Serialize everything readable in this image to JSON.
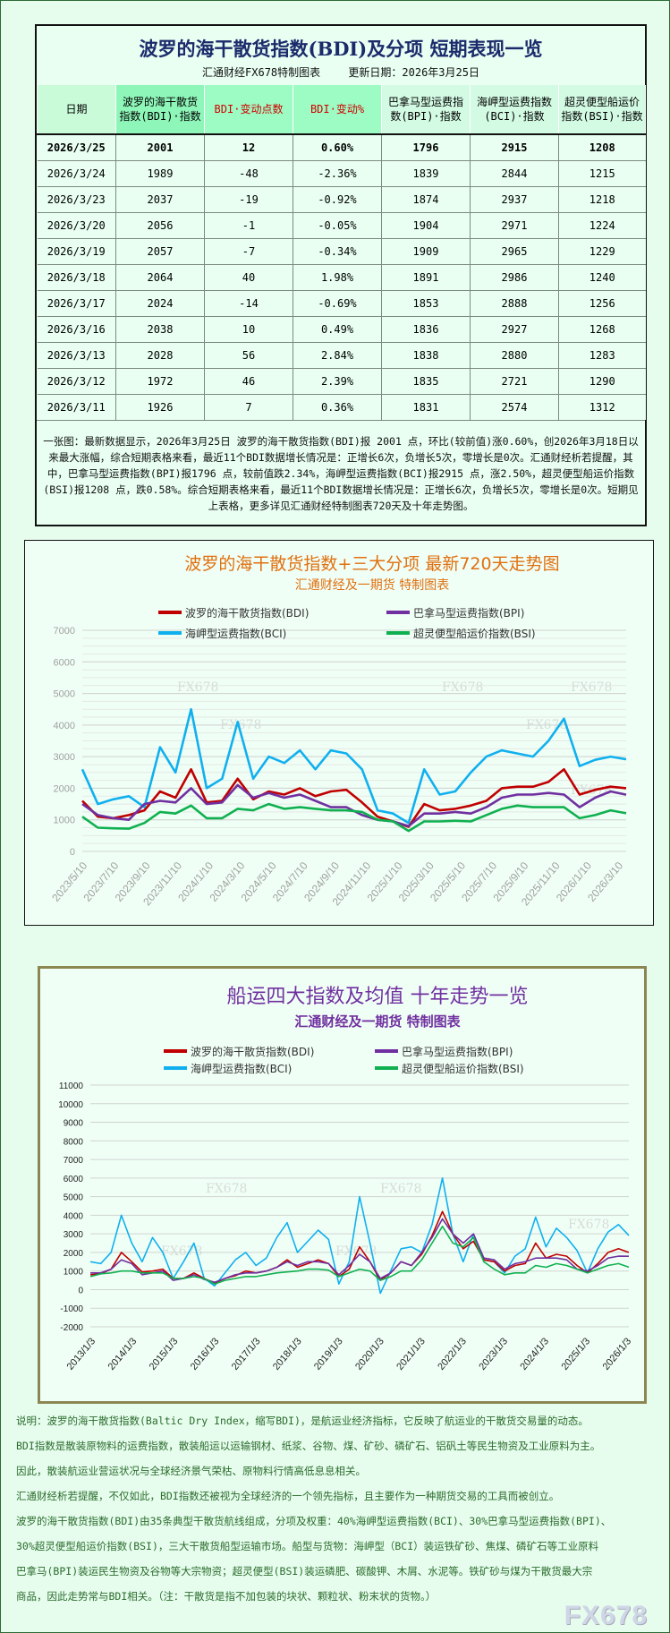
{
  "table": {
    "title": "波罗的海干散货指数(BDI)及分项 短期表现一览",
    "source": "汇通财经FX678特制图表",
    "updated": "更新日期：2026年3月25日",
    "headers": [
      "日期",
      "波罗的海干散货指数(BDI)·指数",
      "BDI·变动点数",
      "BDI·变动%",
      "巴拿马型运费指数(BPI)·指数",
      "海岬型运费指数(BCI)·指数",
      "超灵便型船运价指数(BSI)·指数"
    ],
    "rows": [
      [
        "2026/3/25",
        "2001",
        "12",
        "0.60%",
        "1796",
        "2915",
        "1208"
      ],
      [
        "2026/3/24",
        "1989",
        "-48",
        "-2.36%",
        "1839",
        "2844",
        "1215"
      ],
      [
        "2026/3/23",
        "2037",
        "-19",
        "-0.92%",
        "1874",
        "2937",
        "1218"
      ],
      [
        "2026/3/20",
        "2056",
        "-1",
        "-0.05%",
        "1904",
        "2971",
        "1224"
      ],
      [
        "2026/3/19",
        "2057",
        "-7",
        "-0.34%",
        "1909",
        "2965",
        "1229"
      ],
      [
        "2026/3/18",
        "2064",
        "40",
        "1.98%",
        "1891",
        "2986",
        "1240"
      ],
      [
        "2026/3/17",
        "2024",
        "-14",
        "-0.69%",
        "1853",
        "2888",
        "1256"
      ],
      [
        "2026/3/16",
        "2038",
        "10",
        "0.49%",
        "1836",
        "2927",
        "1268"
      ],
      [
        "2026/3/13",
        "2028",
        "56",
        "2.84%",
        "1838",
        "2880",
        "1283"
      ],
      [
        "2026/3/12",
        "1972",
        "46",
        "2.39%",
        "1835",
        "2721",
        "1290"
      ],
      [
        "2026/3/11",
        "1926",
        "7",
        "0.36%",
        "1831",
        "2574",
        "1312"
      ]
    ],
    "description": "一张图：最新数据显示，2026年3月25日 波罗的海干散货指数(BDI)报 2001 点，环比(较前值)涨0.60%，创2026年3月18日以来最大涨幅，综合短期表格来看，最近11个BDI数据增长情况是：正增长6次，负增长5次，零增长是0次。汇通财经析若提醒，其中，巴拿马型运费指数(BPI)报1796 点，较前值跌2.34%，海岬型运费指数(BCI)报2915 点，涨2.50%，超灵便型船运价指数(BSI)报1208 点，跌0.58%。综合短期表格来看，最近11个BDI数据增长情况是：正增长6次，负增长5次，零增长是0次。短期见上表格，更多详见汇通财经特制图表720天及十年走势图。"
  },
  "colors": {
    "BDI": "#c00000",
    "BPI": "#7030a0",
    "BCI": "#10b0ef",
    "BSI": "#10b050",
    "chart1_title": "#e07010",
    "chart2_title": "#7030a0"
  },
  "watermark": "FX678",
  "chart_data": [
    {
      "type": "line",
      "title": "波罗的海干散货指数+三大分项  最新720天走势图",
      "subtitle": "汇通财经及一期货  特制图表",
      "ylim": [
        0,
        7000
      ],
      "yticks": [
        "0",
        "1000",
        "2000",
        "3000",
        "4000",
        "5000",
        "6000",
        "7000"
      ],
      "xticks": [
        "2023/5/10",
        "2023/7/10",
        "2023/9/10",
        "2023/11/10",
        "2024/1/10",
        "2024/3/10",
        "2024/5/10",
        "2024/7/10",
        "2024/9/10",
        "2024/11/10",
        "2025/1/10",
        "2025/3/10",
        "2025/5/10",
        "2025/7/10",
        "2025/9/10",
        "2025/11/10",
        "2026/1/10",
        "2026/3/10"
      ],
      "grid": true,
      "legend": "top",
      "x": [
        "2023/5",
        "2023/6",
        "2023/7",
        "2023/8",
        "2023/9",
        "2023/10",
        "2023/11",
        "2023/12",
        "2024/1",
        "2024/2",
        "2024/3",
        "2024/4",
        "2024/5",
        "2024/6",
        "2024/7",
        "2024/8",
        "2024/9",
        "2024/10",
        "2024/11",
        "2024/12",
        "2025/1",
        "2025/2",
        "2025/3",
        "2025/4",
        "2025/5",
        "2025/6",
        "2025/7",
        "2025/8",
        "2025/9",
        "2025/10",
        "2025/11",
        "2025/12",
        "2026/1",
        "2026/2",
        "2026/3",
        "2026/3/25"
      ],
      "series": [
        {
          "name": "波罗的海干散货指数(BDI)",
          "key": "BDI",
          "values": [
            1600,
            1100,
            1050,
            1150,
            1300,
            1900,
            1700,
            2600,
            1550,
            1600,
            2300,
            1650,
            1900,
            1800,
            2000,
            1750,
            1900,
            1950,
            1550,
            1100,
            950,
            780,
            1500,
            1300,
            1350,
            1450,
            1600,
            2000,
            2050,
            2050,
            2200,
            2600,
            1800,
            1950,
            2050,
            2001
          ]
        },
        {
          "name": "巴拿马型运费指数(BPI)",
          "key": "BPI",
          "values": [
            1500,
            1150,
            1050,
            1000,
            1500,
            1600,
            1550,
            2000,
            1500,
            1550,
            2100,
            1700,
            1850,
            1700,
            1800,
            1600,
            1400,
            1400,
            1150,
            1000,
            950,
            800,
            1200,
            1200,
            1250,
            1200,
            1400,
            1700,
            1800,
            1800,
            1850,
            1800,
            1400,
            1700,
            1900,
            1796
          ]
        },
        {
          "name": "海岬型运费指数(BCI)",
          "key": "BCI",
          "values": [
            2600,
            1500,
            1650,
            1750,
            1400,
            3300,
            2500,
            4500,
            2000,
            2300,
            4100,
            2300,
            3000,
            2800,
            3200,
            2600,
            3200,
            3100,
            2600,
            1300,
            1200,
            900,
            2600,
            1800,
            1900,
            2500,
            3000,
            3200,
            3100,
            3000,
            3500,
            4200,
            2700,
            2900,
            3000,
            2915
          ]
        },
        {
          "name": "超灵便型船运价指数(BSI)",
          "key": "BSI",
          "values": [
            1100,
            750,
            730,
            720,
            900,
            1250,
            1200,
            1450,
            1050,
            1050,
            1350,
            1300,
            1500,
            1350,
            1400,
            1350,
            1300,
            1300,
            1250,
            1000,
            950,
            650,
            950,
            950,
            970,
            950,
            1150,
            1350,
            1450,
            1400,
            1400,
            1400,
            1050,
            1150,
            1300,
            1208
          ]
        }
      ]
    },
    {
      "type": "line",
      "title": "船运四大指数及均值 十年走势一览",
      "subtitle": "汇通财经及一期货 特制图表",
      "ylim": [
        -2000,
        11000
      ],
      "yticks": [
        "-2000",
        "-1000",
        "0",
        "1000",
        "2000",
        "3000",
        "4000",
        "5000",
        "6000",
        "7000",
        "8000",
        "9000",
        "10000",
        "11000"
      ],
      "xticks": [
        "2013/1/3",
        "2014/1/3",
        "2015/1/3",
        "2016/1/3",
        "2017/1/3",
        "2018/1/3",
        "2019/1/3",
        "2020/1/3",
        "2021/1/3",
        "2022/1/3",
        "2023/1/3",
        "2024/1/3",
        "2025/1/3",
        "2026/1/3"
      ],
      "grid": true,
      "legend": "top",
      "x": [
        "2013Q1",
        "2013Q2",
        "2013Q3",
        "2013Q4",
        "2014Q1",
        "2014Q2",
        "2014Q3",
        "2014Q4",
        "2015Q1",
        "2015Q2",
        "2015Q3",
        "2015Q4",
        "2016Q1",
        "2016Q2",
        "2016Q3",
        "2016Q4",
        "2017Q1",
        "2017Q2",
        "2017Q3",
        "2017Q4",
        "2018Q1",
        "2018Q2",
        "2018Q3",
        "2018Q4",
        "2019Q1",
        "2019Q2",
        "2019Q3",
        "2019Q4",
        "2020Q1",
        "2020Q2",
        "2020Q3",
        "2020Q4",
        "2021Q1",
        "2021Q2",
        "2021Q3",
        "2021Q4",
        "2022Q1",
        "2022Q2",
        "2022Q3",
        "2022Q4",
        "2023Q1",
        "2023Q2",
        "2023Q3",
        "2023Q4",
        "2024Q1",
        "2024Q2",
        "2024Q3",
        "2024Q4",
        "2025Q1",
        "2025Q2",
        "2025Q3",
        "2025Q4",
        "2026Q1"
      ],
      "series": [
        {
          "name": "波罗的海干散货指数(BDI)",
          "key": "BDI",
          "values": [
            800,
            850,
            1100,
            2000,
            1500,
            950,
            1000,
            1100,
            600,
            600,
            900,
            600,
            350,
            600,
            750,
            1000,
            900,
            1000,
            1200,
            1600,
            1200,
            1400,
            1600,
            1400,
            700,
            1100,
            2300,
            1500,
            500,
            900,
            1500,
            1300,
            1900,
            2900,
            4200,
            3000,
            2200,
            2600,
            1600,
            1500,
            1000,
            1300,
            1400,
            2500,
            1700,
            1900,
            1800,
            1300,
            900,
            1400,
            2000,
            2200,
            2001
          ]
        },
        {
          "name": "巴拿马型运费指数(BPI)",
          "key": "BPI",
          "values": [
            900,
            900,
            1100,
            1600,
            1400,
            800,
            900,
            1000,
            500,
            600,
            800,
            550,
            400,
            600,
            800,
            900,
            900,
            1000,
            1200,
            1500,
            1300,
            1500,
            1500,
            1400,
            800,
            1300,
            1900,
            1500,
            600,
            900,
            1500,
            1300,
            2000,
            2800,
            3800,
            3000,
            2500,
            3000,
            1700,
            1600,
            1100,
            1400,
            1500,
            1700,
            1700,
            1700,
            1600,
            1100,
            1000,
            1300,
            1700,
            1800,
            1796
          ]
        },
        {
          "name": "海岬型运费指数(BCI)",
          "key": "BCI",
          "values": [
            1500,
            1400,
            2000,
            4000,
            2500,
            1500,
            2800,
            2000,
            600,
            1500,
            2500,
            600,
            200,
            900,
            1600,
            2000,
            1300,
            1700,
            2800,
            3600,
            2000,
            2600,
            3200,
            2700,
            300,
            1500,
            5000,
            2500,
            -200,
            1000,
            2200,
            2300,
            2000,
            3500,
            6000,
            3000,
            1500,
            3000,
            1600,
            1500,
            900,
            1800,
            2200,
            3900,
            2300,
            3300,
            2800,
            2100,
            900,
            2200,
            3100,
            3500,
            2915
          ]
        },
        {
          "name": "超灵便型船运价指数(BSI)",
          "key": "BSI",
          "values": [
            700,
            850,
            900,
            1000,
            1000,
            900,
            900,
            900,
            600,
            600,
            700,
            600,
            300,
            500,
            600,
            700,
            700,
            800,
            900,
            950,
            1000,
            1100,
            1100,
            1050,
            700,
            900,
            1100,
            1000,
            500,
            700,
            1000,
            1000,
            1600,
            2500,
            3400,
            2500,
            2300,
            2800,
            1500,
            1100,
            800,
            900,
            900,
            1300,
            1200,
            1400,
            1300,
            1100,
            900,
            1100,
            1300,
            1400,
            1208
          ]
        }
      ]
    }
  ],
  "notes": [
    "说明：波罗的海干散货指数(Baltic Dry Index，缩写BDI)，是航运业经济指标，它反映了航运业的干散货交易量的动态。",
    "BDI指数是散装原物料的运费指数，散装船运以运输钢材、纸浆、谷物、煤、矿砂、磷矿石、铝矾土等民生物资及工业原料为主。",
    "因此，散装航运业营运状况与全球经济景气荣枯、原物料行情高低息息相关。",
    "汇通财经析若提醒，不仅如此，BDI指数还被视为全球经济的一个领先指标，且主要作为一种期货交易的工具而被创立。",
    "波罗的海干散货指数(BDI)由35条典型干散货航线组成，分项及权重：40%海岬型运费指数(BCI)、30%巴拿马型运费指数(BPI)、",
    "30%超灵便型船运价指数(BSI)，三大干散货船型运输市场。船型与货物：海岬型（BCI）装运铁矿砂、焦煤、磷矿石等工业原料",
    "巴拿马(BPI)装运民生物资及谷物等大宗物资；超灵便型(BSI)装运磷肥、碳酸钾、木屑、水泥等。铁矿砂与煤为干散货最大宗",
    "商品，因此走势常与BDI相关。（注：干散货是指不加包装的块状、颗粒状、粉末状的货物。）"
  ]
}
